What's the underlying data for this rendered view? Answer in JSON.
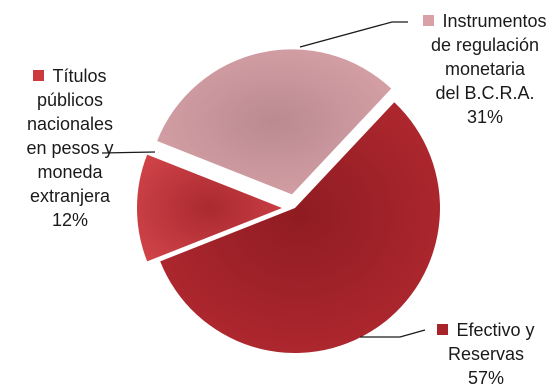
{
  "chart_data": {
    "type": "pie",
    "title": "",
    "slices": [
      {
        "label_lines": [
          "Instrumentos",
          "de regulación",
          "monetaria",
          "del B.C.R.A."
        ],
        "percent_label": "31%",
        "value": 31,
        "color": "#d9a0a6",
        "legend": true
      },
      {
        "label_lines": [
          "Efectivo y",
          "Reservas"
        ],
        "percent_label": "57%",
        "value": 57,
        "color": "#a7242b",
        "legend": true
      },
      {
        "label_lines": [
          "Títulos",
          "públicos",
          "nacionales",
          "en pesos y",
          "moneda",
          "extranjera"
        ],
        "percent_label": "12%",
        "value": 12,
        "color": "#cc3a40",
        "legend": true
      }
    ]
  }
}
